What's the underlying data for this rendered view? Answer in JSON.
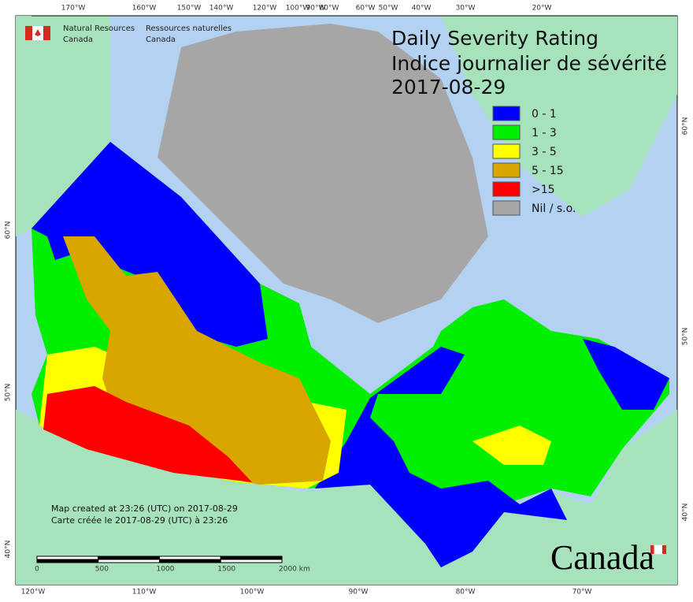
{
  "header": {
    "agency_en": "Natural Resources",
    "country_en": "Canada",
    "agency_fr": "Ressources naturelles",
    "country_fr": "Canada"
  },
  "title": {
    "line1": "Daily Severity Rating",
    "line2": "Indice journalier de sévérité",
    "date": "2017-08-29"
  },
  "legend": [
    {
      "label": "0 - 1",
      "color": "#0000ff"
    },
    {
      "label": "1 - 3",
      "color": "#00ee00"
    },
    {
      "label": "3 - 5",
      "color": "#ffff00"
    },
    {
      "label": "5 - 15",
      "color": "#d9a600"
    },
    {
      "label": ">15",
      "color": "#ff0000"
    },
    {
      "label": "Nil / s.o.",
      "color": "#a6a6a6"
    }
  ],
  "top_ticks": [
    "170°W",
    "160°W",
    "150°W",
    "140°W",
    "120°W",
    "100°W",
    "90°W",
    "80°W",
    "60°W",
    "50°W",
    "40°W",
    "30°W",
    "20°W"
  ],
  "bottom_ticks": [
    "120°W",
    "110°W",
    "100°W",
    "90°W",
    "80°W",
    "70°W"
  ],
  "left_ticks": [
    "60°N",
    "50°N",
    "40°N"
  ],
  "right_ticks": [
    "60°N",
    "50°N",
    "40°N"
  ],
  "notes": [
    "Map created at 23:26 (UTC) on 2017-08-29",
    "Carte créée le 2017-08-29 (UTC) à 23:26"
  ],
  "scale_labels": [
    "0",
    "500",
    "1000",
    "1500",
    "2000 km"
  ],
  "wordmark": "Canada"
}
